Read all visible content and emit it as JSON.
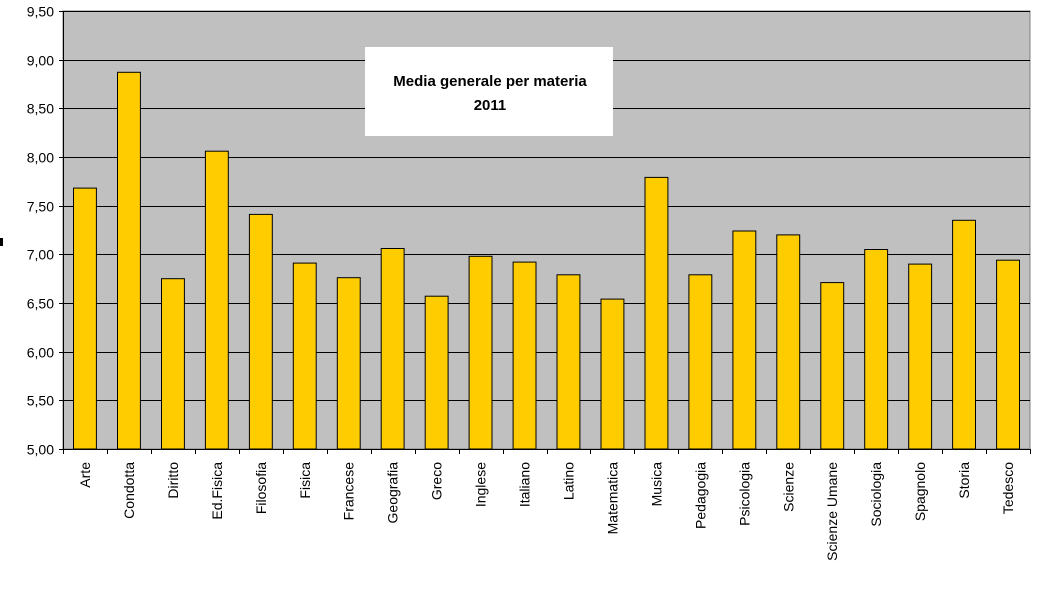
{
  "chart_data": {
    "type": "bar",
    "title_lines": [
      "Media generale per materia",
      "2011"
    ],
    "categories": [
      "Arte",
      "Condotta",
      "Diritto",
      "Ed.Fisica",
      "Filosofia",
      "Fisica",
      "Francese",
      "Geografia",
      "Greco",
      "Inglese",
      "Italiano",
      "Latino",
      "Matematica",
      "Musica",
      "Pedagogia",
      "Psicologia",
      "Scienze",
      "Scienze Umane",
      "Sociologia",
      "Spagnolo",
      "Storia",
      "Tedesco"
    ],
    "values": [
      7.68,
      8.87,
      6.75,
      8.06,
      7.41,
      6.91,
      6.76,
      7.06,
      6.57,
      6.98,
      6.92,
      6.79,
      6.54,
      7.79,
      6.79,
      7.24,
      7.2,
      6.71,
      7.05,
      6.9,
      7.35,
      6.94
    ],
    "ylim": [
      5.0,
      9.5
    ],
    "yticks": [
      5.0,
      5.5,
      6.0,
      6.5,
      7.0,
      7.5,
      8.0,
      8.5,
      9.0,
      9.5
    ],
    "ytick_labels": [
      "5,00",
      "5,50",
      "6,00",
      "6,50",
      "7,00",
      "7,50",
      "8,00",
      "8,50",
      "9,00",
      "9,50"
    ],
    "grid": true,
    "colors": {
      "bar": "#FFCC00",
      "plot_background": "#C0C0C0",
      "title_box": "#FFFFFF"
    }
  }
}
